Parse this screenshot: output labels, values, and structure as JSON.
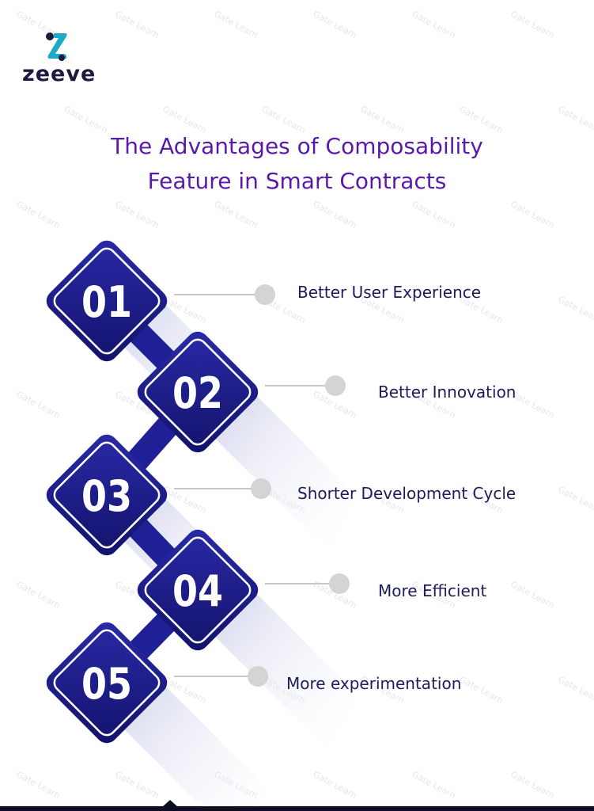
{
  "brand": {
    "name": "zeeve",
    "icon": "zeeve-logo-icon"
  },
  "watermark": {
    "text": "Gate Learn"
  },
  "title": {
    "line1": "The Advantages of Composability",
    "line2": "Feature in Smart Contracts"
  },
  "steps": [
    {
      "number": "01",
      "label": "Better User Experience"
    },
    {
      "number": "02",
      "label": "Better Innovation"
    },
    {
      "number": "03",
      "label": "Shorter Development Cycle"
    },
    {
      "number": "04",
      "label": "More Efficient"
    },
    {
      "number": "05",
      "label": "More experimentation"
    }
  ],
  "colors": {
    "title": "#5a1aa8",
    "diamond_dark": "#16167a",
    "diamond_mid": "#2a2aa8",
    "connector": "#1f1f96",
    "leader_dot": "#d4d4d4",
    "leader_line": "#c8c8c8",
    "label_text": "#1c1c5a",
    "logo_teal": "#1ea9c6",
    "logo_dark": "#1b1b40"
  }
}
